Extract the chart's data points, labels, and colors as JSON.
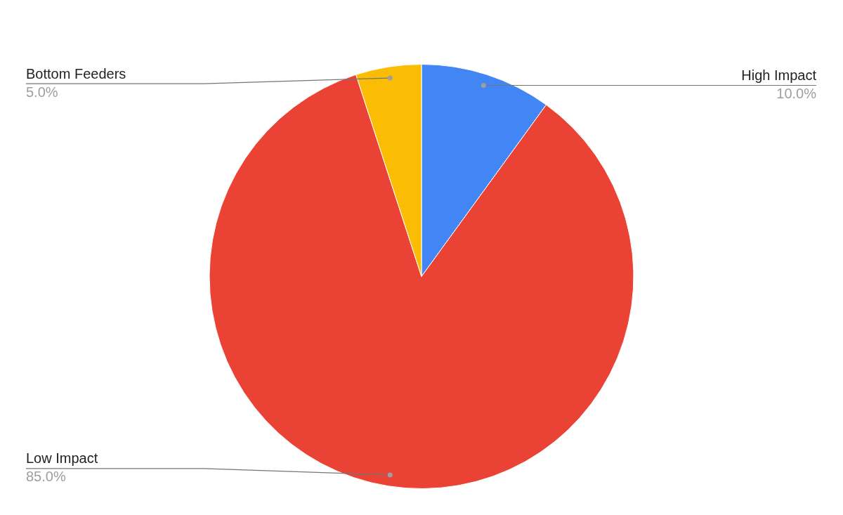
{
  "chart_data": {
    "type": "pie",
    "categories": [
      "High Impact",
      "Low Impact",
      "Bottom Feeders"
    ],
    "values": [
      10,
      85,
      5
    ],
    "colors": [
      "#4285f4",
      "#ea4335",
      "#fbbc04"
    ],
    "value_labels": [
      "10.0%",
      "85.0%",
      "5.0%"
    ],
    "legend": false
  }
}
